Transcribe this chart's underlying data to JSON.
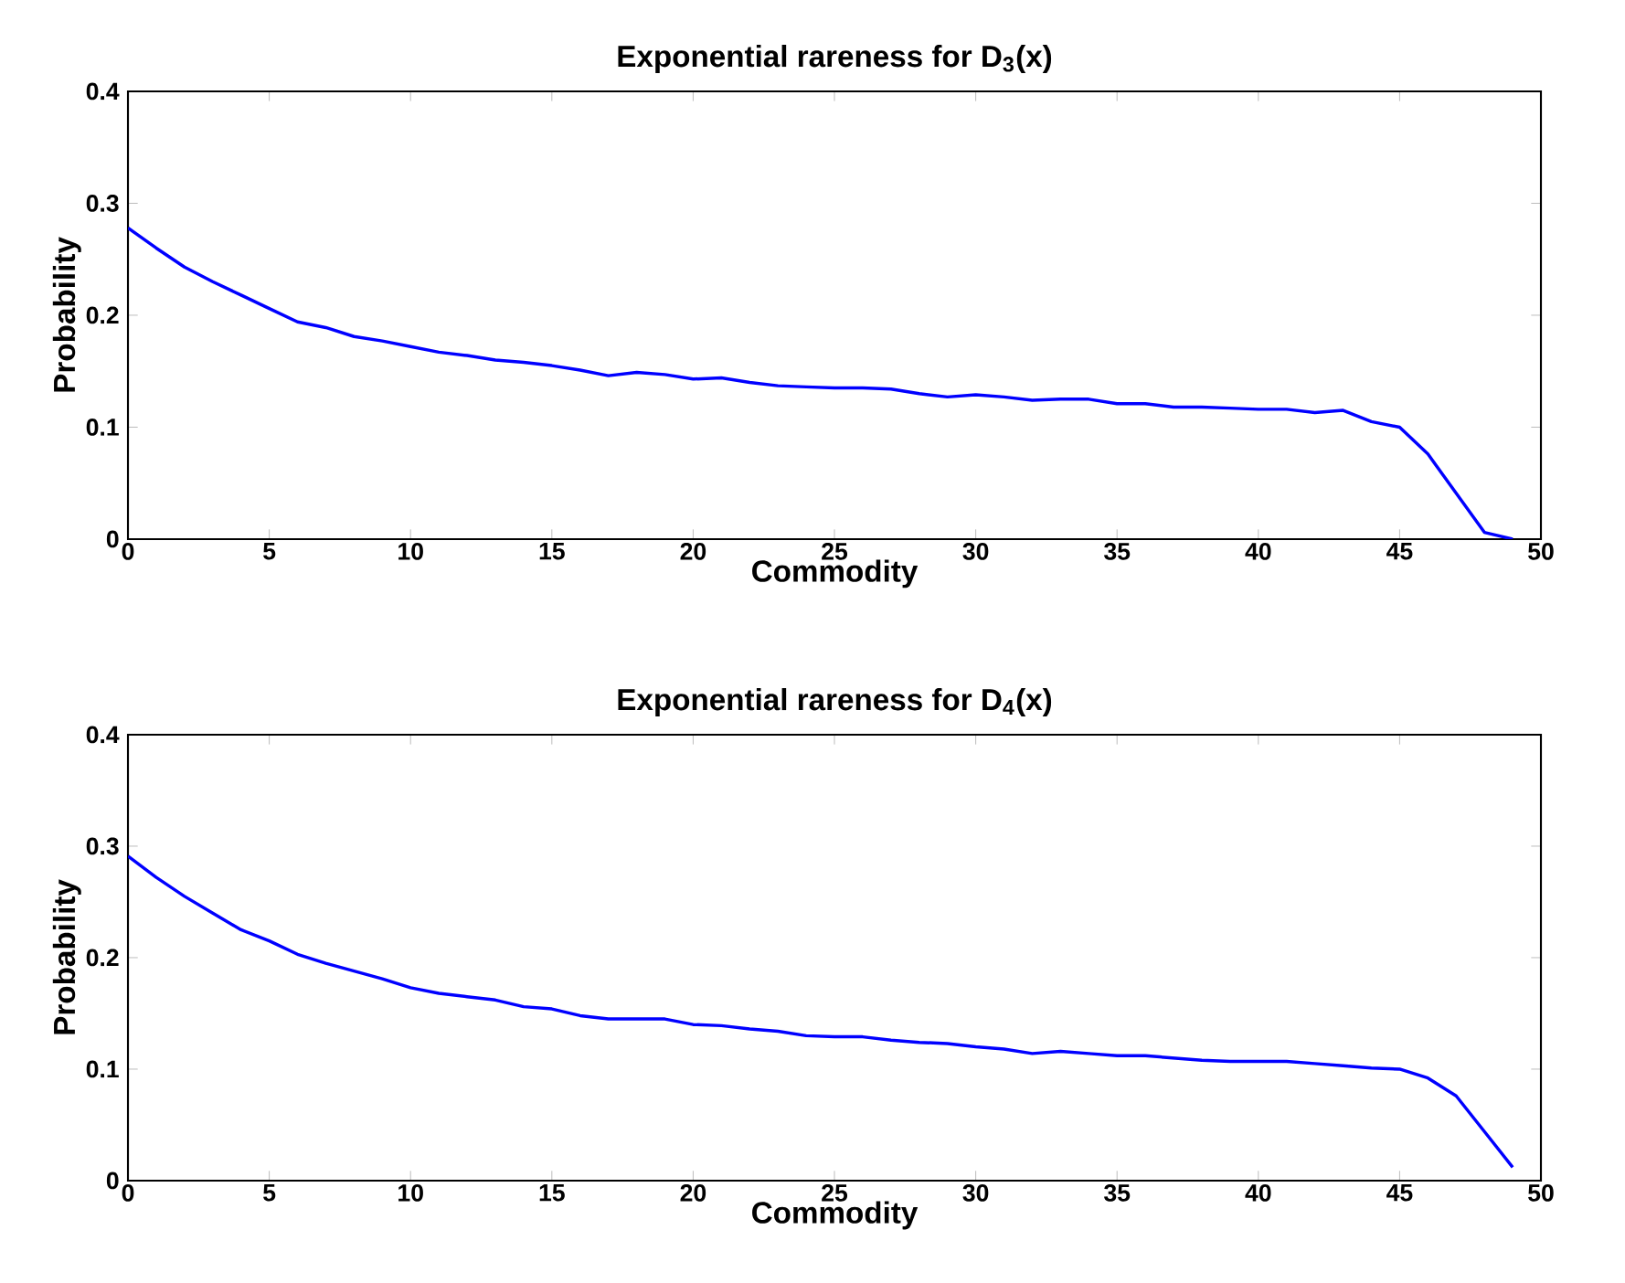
{
  "chart_data": [
    {
      "type": "line",
      "title": "Exponential rareness for D$_{3}$(x)",
      "xlabel": "Commodity",
      "ylabel": "Probability",
      "x": [
        0,
        1,
        2,
        3,
        4,
        5,
        6,
        7,
        8,
        9,
        10,
        11,
        12,
        13,
        14,
        15,
        16,
        17,
        18,
        19,
        20,
        21,
        22,
        23,
        24,
        25,
        26,
        27,
        28,
        29,
        30,
        31,
        32,
        33,
        34,
        35,
        36,
        37,
        38,
        39,
        40,
        41,
        42,
        43,
        44,
        45,
        46,
        47,
        48,
        49
      ],
      "series": [
        {
          "color": "#0000ff",
          "values": [
            0.278,
            0.26,
            0.243,
            0.23,
            0.218,
            0.206,
            0.194,
            0.189,
            0.181,
            0.177,
            0.172,
            0.167,
            0.164,
            0.16,
            0.158,
            0.155,
            0.151,
            0.146,
            0.149,
            0.147,
            0.143,
            0.144,
            0.14,
            0.137,
            0.136,
            0.135,
            0.135,
            0.134,
            0.13,
            0.127,
            0.129,
            0.127,
            0.124,
            0.125,
            0.125,
            0.121,
            0.121,
            0.118,
            0.118,
            0.117,
            0.116,
            0.116,
            0.113,
            0.115,
            0.105,
            0.1,
            0.076,
            0.041,
            0.006,
            0.0
          ]
        }
      ],
      "xlim": [
        0,
        50
      ],
      "xticks": [
        0,
        5,
        10,
        15,
        20,
        25,
        30,
        35,
        40,
        45,
        50
      ],
      "ylim": [
        0,
        0.4
      ],
      "yticks": [
        0,
        0.1,
        0.2,
        0.3,
        0.4
      ]
    },
    {
      "type": "line",
      "title": "Exponential rareness for D$_{4}$(x)",
      "xlabel": "Commodity",
      "ylabel": "Probability",
      "x": [
        0,
        1,
        2,
        3,
        4,
        5,
        6,
        7,
        8,
        9,
        10,
        11,
        12,
        13,
        14,
        15,
        16,
        17,
        18,
        19,
        20,
        21,
        22,
        23,
        24,
        25,
        26,
        27,
        28,
        29,
        30,
        31,
        32,
        33,
        34,
        35,
        36,
        37,
        38,
        39,
        40,
        41,
        42,
        43,
        44,
        45,
        46,
        47,
        48,
        49
      ],
      "series": [
        {
          "color": "#0000ff",
          "values": [
            0.291,
            0.272,
            0.255,
            0.24,
            0.225,
            0.215,
            0.203,
            0.195,
            0.188,
            0.181,
            0.173,
            0.168,
            0.165,
            0.162,
            0.156,
            0.154,
            0.148,
            0.145,
            0.145,
            0.145,
            0.14,
            0.139,
            0.136,
            0.134,
            0.13,
            0.129,
            0.129,
            0.126,
            0.124,
            0.123,
            0.12,
            0.118,
            0.114,
            0.116,
            0.114,
            0.112,
            0.112,
            0.11,
            0.108,
            0.107,
            0.107,
            0.107,
            0.105,
            0.103,
            0.101,
            0.1,
            0.092,
            0.076,
            0.044,
            0.012
          ]
        }
      ],
      "xlim": [
        0,
        50
      ],
      "xticks": [
        0,
        5,
        10,
        15,
        20,
        25,
        30,
        35,
        40,
        45,
        50
      ],
      "ylim": [
        0,
        0.4
      ],
      "yticks": [
        0,
        0.1,
        0.2,
        0.3,
        0.4
      ]
    }
  ]
}
